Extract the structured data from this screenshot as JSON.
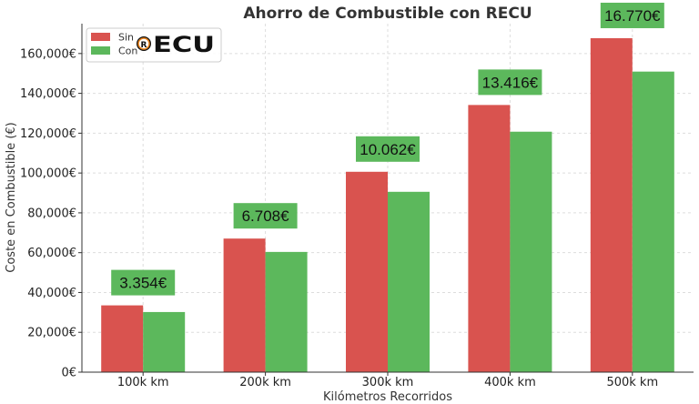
{
  "chart_data": {
    "type": "bar",
    "title": "Ahorro de Combustible con RECU",
    "xlabel": "Kilómetros Recorridos",
    "ylabel": "Coste en Combustible (€)",
    "categories": [
      "100k km",
      "200k km",
      "300k km",
      "400k km",
      "500k km"
    ],
    "series": [
      {
        "name": "Sin",
        "color": "#d9534f",
        "values": [
          33540,
          67080,
          100620,
          134160,
          167700
        ]
      },
      {
        "name": "Con",
        "color": "#5cb85c",
        "values": [
          30186,
          60372,
          90558,
          120744,
          150930
        ]
      }
    ],
    "savings_labels": [
      "3.354€",
      "6.708€",
      "10.062€",
      "13.416€",
      "16.770€"
    ],
    "ylim": [
      0,
      175000
    ],
    "yticks": [
      0,
      20000,
      40000,
      60000,
      80000,
      100000,
      120000,
      140000,
      160000
    ],
    "ytick_labels": [
      "0€",
      "20,000€",
      "40,000€",
      "60,000€",
      "80,000€",
      "100,000€",
      "120,000€",
      "140,000€",
      "160,000€"
    ],
    "grid": true,
    "legend_position": "top-left",
    "logo_text": "ECU",
    "logo_badge": "R",
    "savings_box_color": "#5cb85c"
  }
}
